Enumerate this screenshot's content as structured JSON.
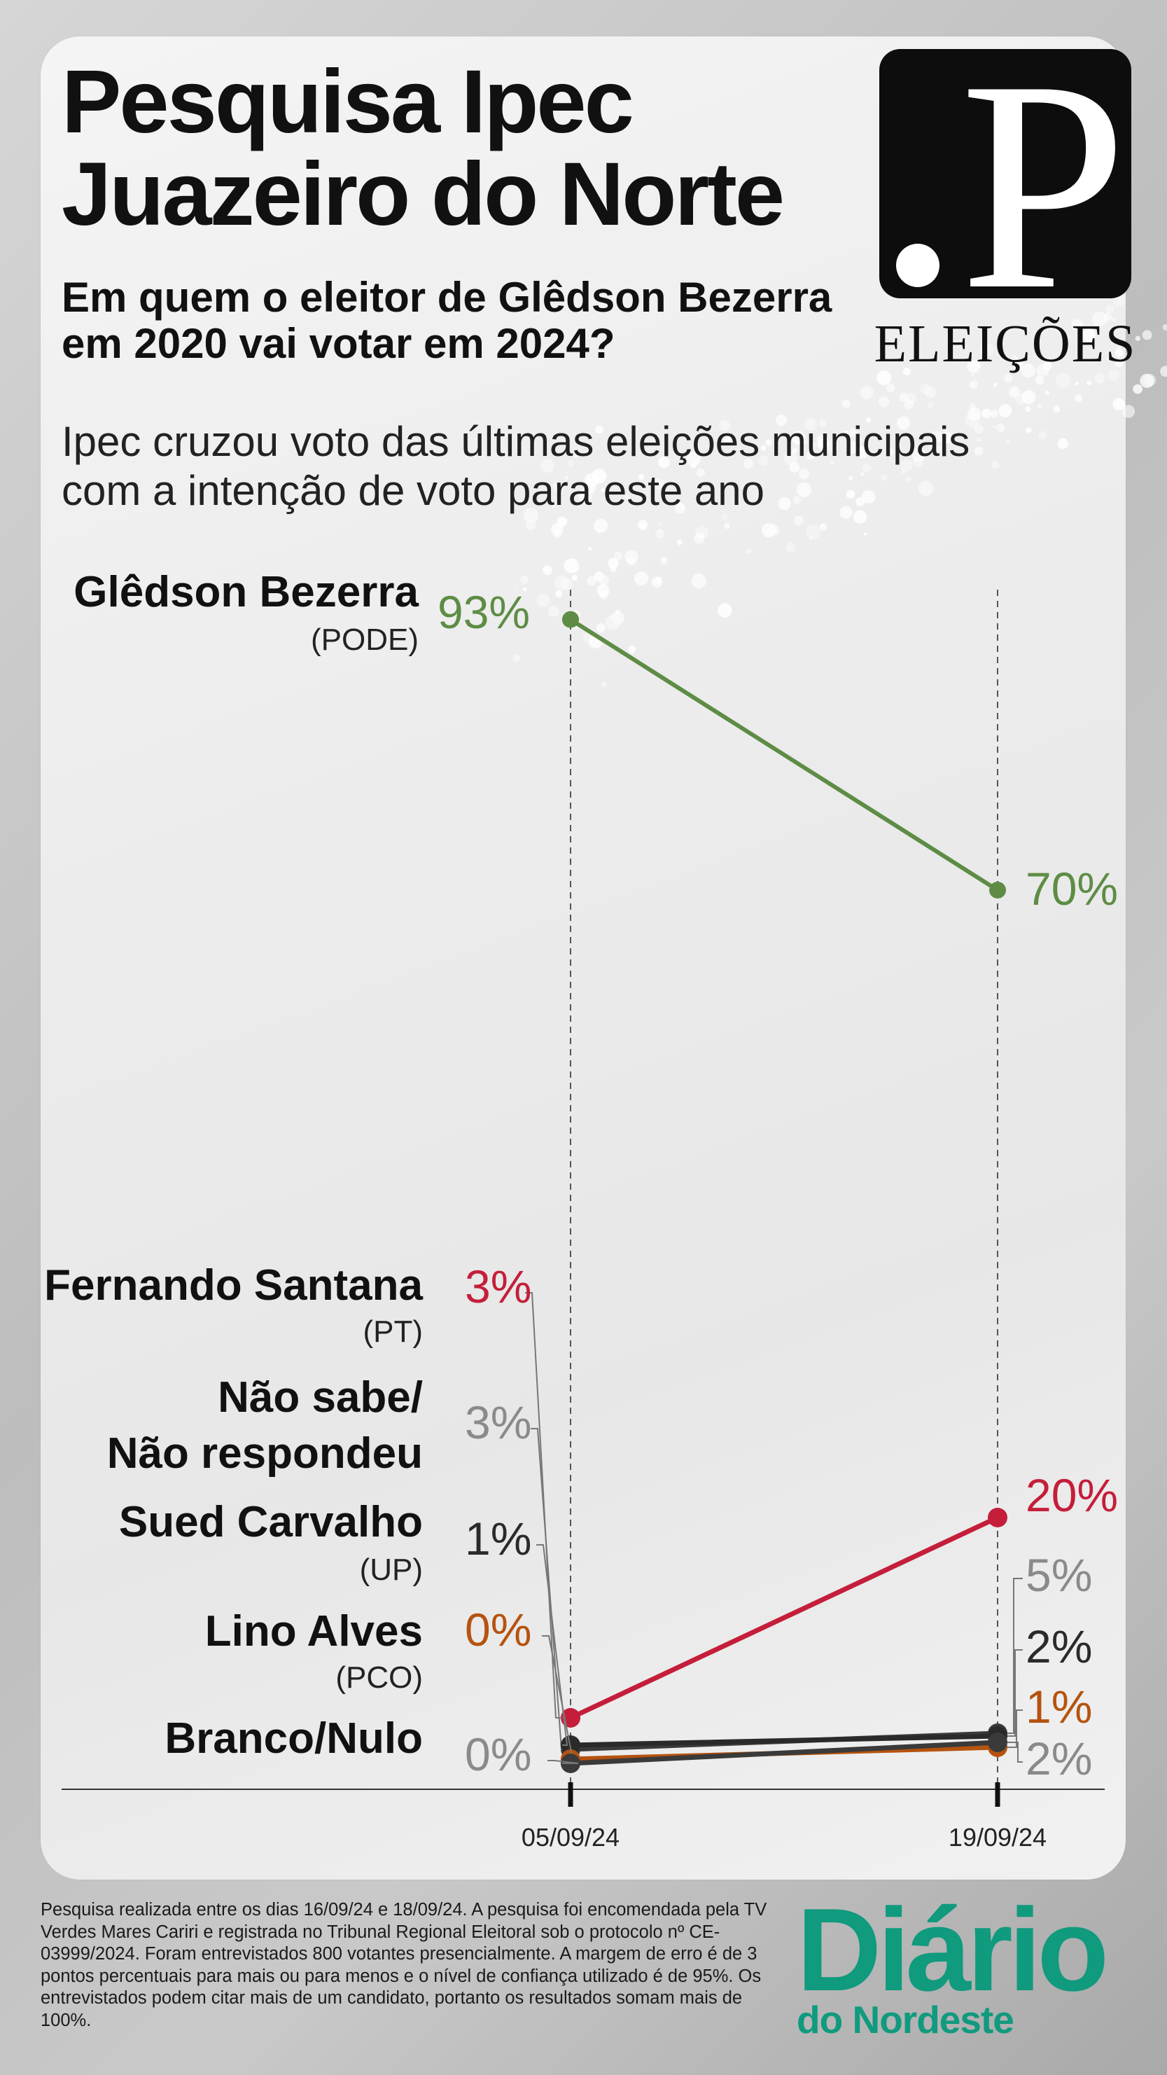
{
  "header": {
    "title": "Pesquisa Ipec\nJuazeiro do Norte",
    "subtitle": "Em quem o eleitor de Glêdson Bezerra em 2020 vai votar em 2024?",
    "description": "Ipec cruzou voto das últimas eleições municipais com a intenção de voto para este ano"
  },
  "logo": {
    "letter": "P",
    "label": "ELEIÇÕES"
  },
  "colors": {
    "green": "#5e8c45",
    "red": "#c41e3a",
    "gray": "#8a8a8a",
    "dark": "#2a2a2a",
    "orange": "#b5530f"
  },
  "chart_data": {
    "type": "line",
    "title": "",
    "xlabel": "",
    "ylabel": "",
    "x": [
      "05/09/24",
      "19/09/24"
    ],
    "ylim": [
      0,
      100
    ],
    "series": [
      {
        "name": "Glêdson Bezerra",
        "party": "(PODE)",
        "values": [
          93,
          70
        ],
        "labels": [
          "93%",
          "70%"
        ],
        "color": "#5e8c45"
      },
      {
        "name": "Fernando Santana",
        "party": "(PT)",
        "values": [
          3,
          20
        ],
        "labels": [
          "3%",
          "20%"
        ],
        "color": "#c41e3a"
      },
      {
        "name": "Não sabe/\nNão respondeu",
        "party": "",
        "values": [
          3,
          5
        ],
        "labels": [
          "3%",
          "5%"
        ],
        "color": "#8a8a8a"
      },
      {
        "name": "Sued Carvalho",
        "party": "(UP)",
        "values": [
          1,
          2
        ],
        "labels": [
          "1%",
          "2%"
        ],
        "color": "#2a2a2a"
      },
      {
        "name": "Lino Alves",
        "party": "(PCO)",
        "values": [
          0,
          1
        ],
        "labels": [
          "0%",
          "1%"
        ],
        "color": "#b5530f"
      },
      {
        "name": "Branco/Nulo",
        "party": "",
        "values": [
          0,
          2
        ],
        "labels": [
          "0%",
          "2%"
        ],
        "color": "#8a8a8a"
      }
    ]
  },
  "footer": {
    "note": "Pesquisa realizada entre os dias 16/09/24 e 18/09/24. A pesquisa foi encomendada pela TV Verdes Mares Cariri e registrada no Tribunal Regional Eleitoral  sob o protocolo nº CE-03999/2024. Foram entrevistados 800 votantes presencialmente. A margem de erro é de 3 pontos percentuais para mais ou para menos e o nível de confiança utilizado é de 95%. Os entrevistados podem citar mais de um candidato, portanto os resultados somam mais de 100%.",
    "brand_main": "Diário",
    "brand_sub": "do Nordeste"
  }
}
